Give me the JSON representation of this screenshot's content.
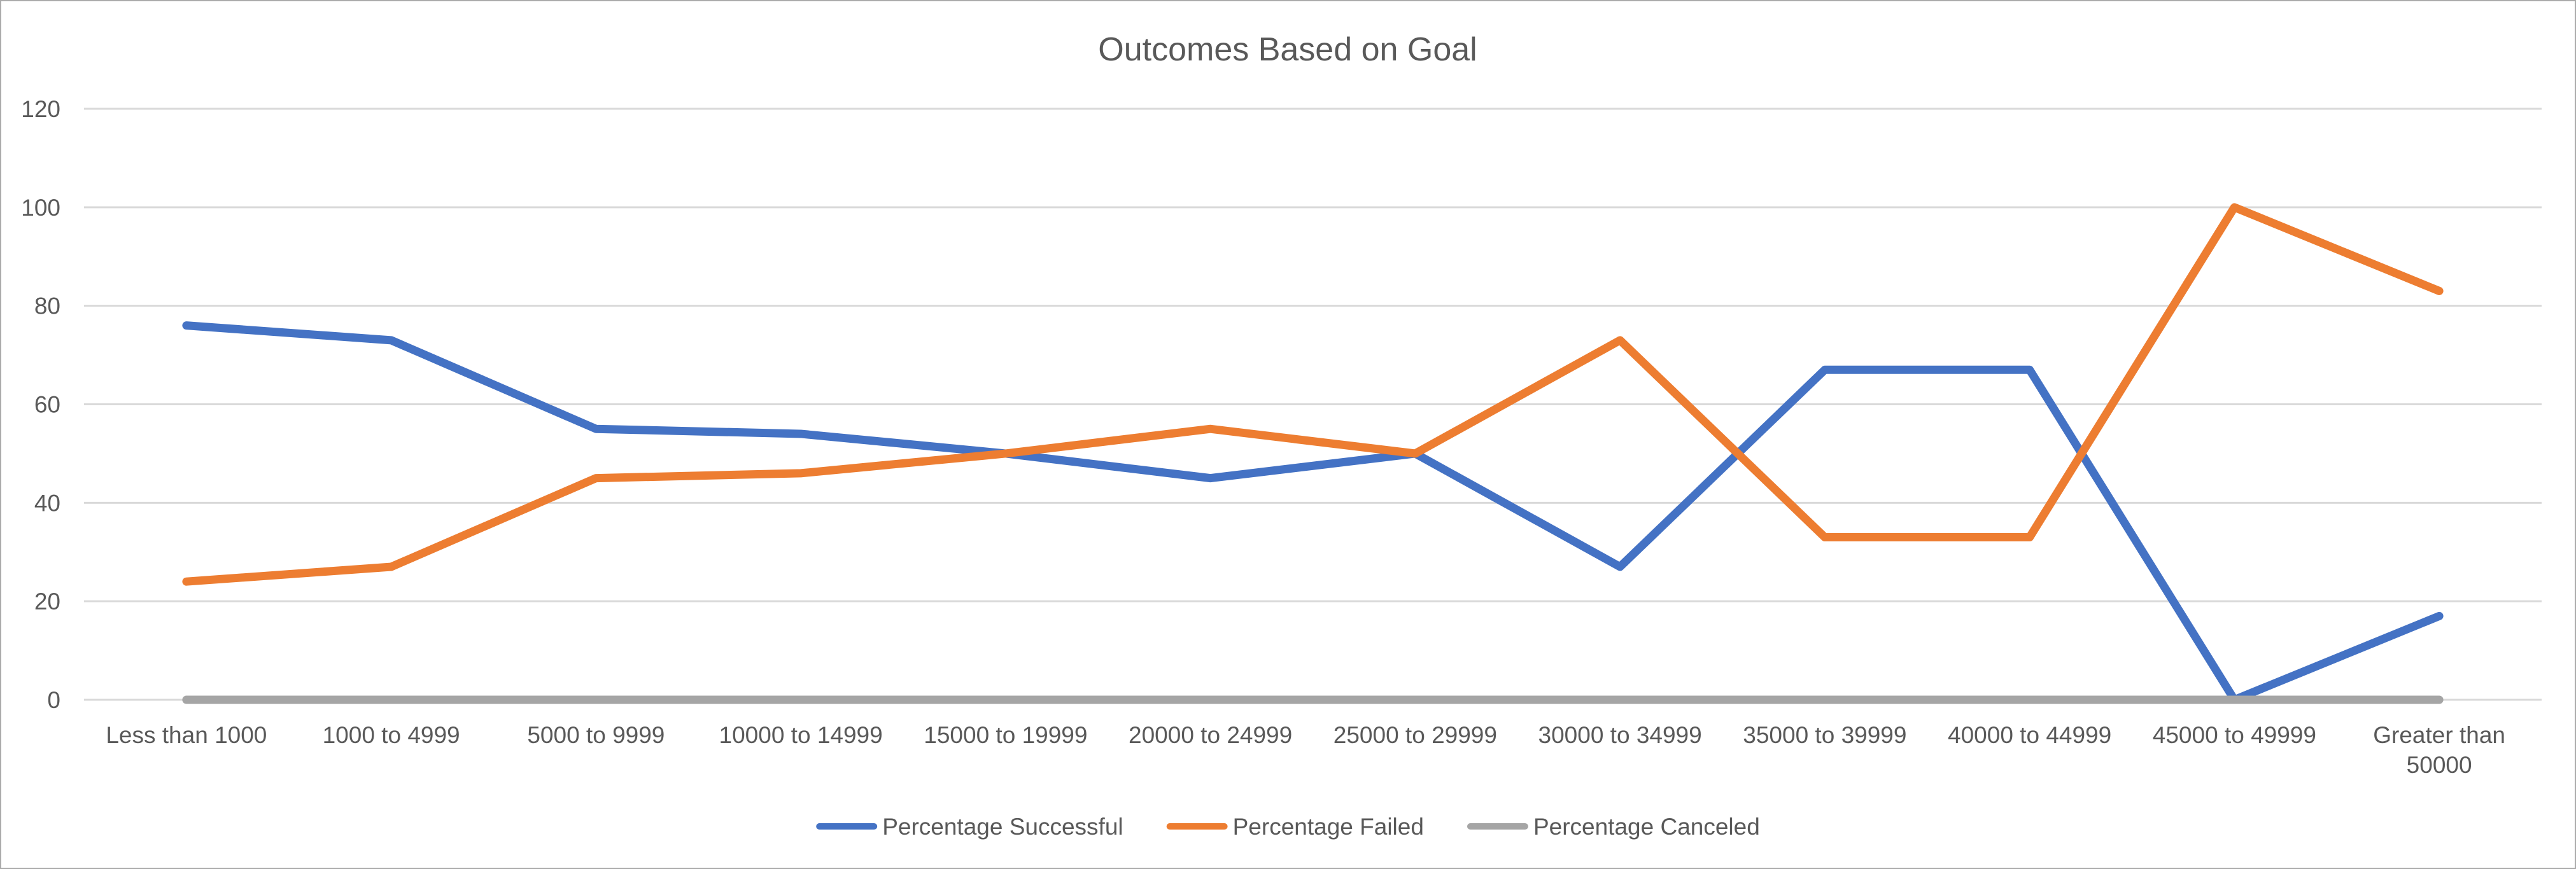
{
  "title": "Outcomes Based on Goal",
  "colors": {
    "text": "#595959",
    "gridline": "#D9D9D9",
    "frame": "#ABABAB",
    "background": "#FFFFFF",
    "series_blue": "#4472C4",
    "series_orange": "#ED7D31",
    "series_gray": "#A5A5A5"
  },
  "chart_data": {
    "type": "line",
    "title": "Outcomes Based on Goal",
    "xlabel": "",
    "ylabel": "",
    "categories": [
      "Less than 1000",
      "1000 to 4999",
      "5000 to 9999",
      "10000 to 14999",
      "15000 to 19999",
      "20000 to 24999",
      "25000 to 29999",
      "30000 to 34999",
      "35000 to 39999",
      "40000 to 44999",
      "45000 to 49999",
      "Greater than 50000"
    ],
    "series": [
      {
        "name": "Percentage Successful",
        "color": "#4472C4",
        "values": [
          76,
          73,
          55,
          54,
          50,
          45,
          50,
          27,
          67,
          67,
          0,
          17
        ]
      },
      {
        "name": "Percentage Failed",
        "color": "#ED7D31",
        "values": [
          24,
          27,
          45,
          46,
          50,
          55,
          50,
          73,
          33,
          33,
          100,
          83
        ]
      },
      {
        "name": "Percentage Canceled",
        "color": "#A5A5A5",
        "values": [
          0,
          0,
          0,
          0,
          0,
          0,
          0,
          0,
          0,
          0,
          0,
          0
        ]
      }
    ],
    "y_axis": {
      "min": 0,
      "max": 120,
      "step": 20,
      "ticks": [
        0,
        20,
        40,
        60,
        80,
        100,
        120
      ]
    },
    "legend_position": "bottom",
    "grid": "horizontal"
  }
}
